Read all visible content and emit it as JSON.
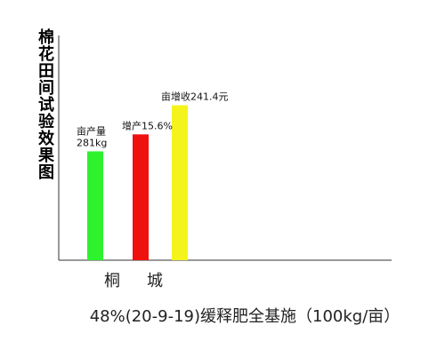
{
  "chart_data": {
    "type": "bar",
    "title": "棉花田间试验效果图",
    "categories": [
      "亩产量",
      "增产15.6%",
      "亩增收241.4元"
    ],
    "values": [
      281,
      324.8,
      400
    ],
    "colors": [
      "#2ef22e",
      "#ef1010",
      "#f4f41c"
    ],
    "data_labels": [
      [
        "亩产量",
        "281kg"
      ],
      [
        "增产15.6%"
      ],
      [
        "亩增收241.4元"
      ]
    ],
    "x_group_labels": [
      "桐",
      "城"
    ],
    "caption": "48%(20-9-19)缓释肥全基施（100kg/亩）",
    "grid": false,
    "legend": "none",
    "ylim": [
      0,
      580
    ]
  }
}
